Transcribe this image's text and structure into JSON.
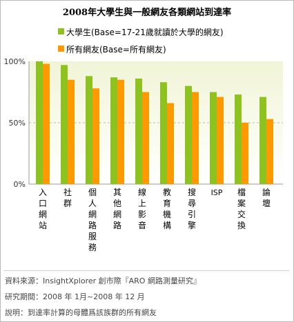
{
  "chart_data": {
    "type": "bar",
    "title": "2008年大學生與一般網友各類網站到達率",
    "categories": [
      "入口網站",
      "社群",
      "個人網路服務",
      "其他網路",
      "線上影音",
      "教育機構",
      "搜尋引擎",
      "ISP",
      "檔案交換",
      "論壇"
    ],
    "series": [
      {
        "name": "大學生(Base=17-21歲就讀於大學的網友)",
        "color": "#8dc21f",
        "values": [
          100,
          97,
          88,
          87,
          86,
          83,
          80,
          75,
          73,
          71
        ]
      },
      {
        "name": "所有網友(Base=所有網友)",
        "color": "#ff9900",
        "values": [
          98,
          85,
          78,
          85,
          75,
          66,
          75,
          71,
          50,
          53
        ]
      }
    ],
    "yticks": [
      "0%",
      "50%",
      "100%"
    ],
    "ylim": [
      0,
      100
    ],
    "grid": "dashed line at 50%",
    "legend_position": "top"
  },
  "footer": {
    "source": "資料來源：InsightXplorer 創市際『ARO 網路測量研究』",
    "period": "研究期間：2008 年 1月~2008 年 12 月",
    "note": "說明：到達率計算的母體爲該族群的所有網友"
  }
}
